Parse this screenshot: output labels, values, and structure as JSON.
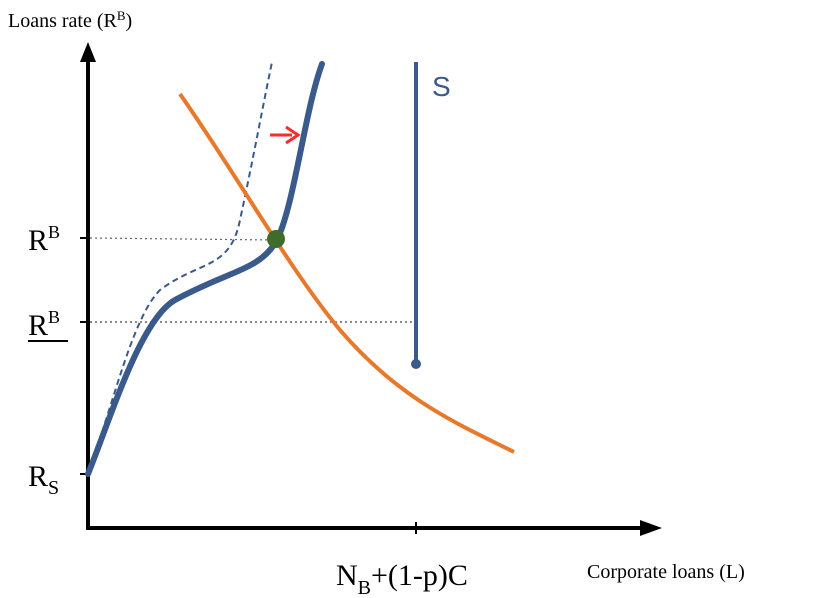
{
  "axes": {
    "y_label_main": "Loans rate (R",
    "y_label_sup": "B",
    "y_label_close": ")",
    "x_label": "Corporate loans (L)"
  },
  "ticks": {
    "rb_upper_main": "R",
    "rb_upper_sup": "B",
    "rb_lower_main": "R",
    "rb_lower_sup": "B",
    "rs_main": "R",
    "rs_sub": "S",
    "x_tick_main1": "N",
    "x_tick_sub": "B",
    "x_tick_main2": "+(1-p)C"
  },
  "curves": {
    "supply_label": "S"
  },
  "colors": {
    "axis": "#000000",
    "demand": "#E8782A",
    "supply": "#3A5A8C",
    "equilibrium": "#3F6B2C",
    "arrow": "#FF2A2A",
    "guide": "#555555"
  }
}
